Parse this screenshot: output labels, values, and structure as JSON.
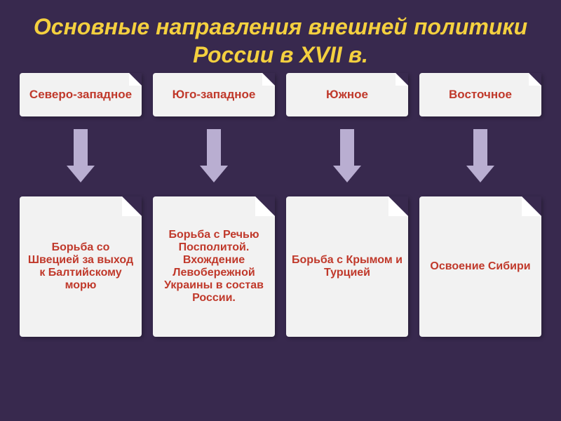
{
  "background_color": "#38294e",
  "title": {
    "text": "Основные направления внешней политики России в XVII в.",
    "color": "#f4d03f",
    "fontsize": 32
  },
  "arrow_color": "#b9aed1",
  "top_card": {
    "bg": "#f2f2f2",
    "fold_light": "#ffffff",
    "fontsize": 17
  },
  "bottom_card": {
    "bg": "#f2f2f2",
    "fold_light": "#ffffff",
    "fontsize": 16
  },
  "columns": [
    {
      "label": "Северо-западное",
      "label_color": "#c0392b",
      "desc": "Борьба со Швецией за выход к Балтийскому морю",
      "desc_color": "#c0392b"
    },
    {
      "label": "Юго-западное",
      "label_color": "#c0392b",
      "desc": "Борьба с Речью Посполитой. Вхождение Левобережной Украины в состав России.",
      "desc_color": "#c0392b"
    },
    {
      "label": "Южное",
      "label_color": "#c0392b",
      "desc": "Борьба с Крымом и Турцией",
      "desc_color": "#c0392b"
    },
    {
      "label": "Восточное",
      "label_color": "#c0392b",
      "desc": "Освоение Сибири",
      "desc_color": "#c0392b"
    }
  ]
}
